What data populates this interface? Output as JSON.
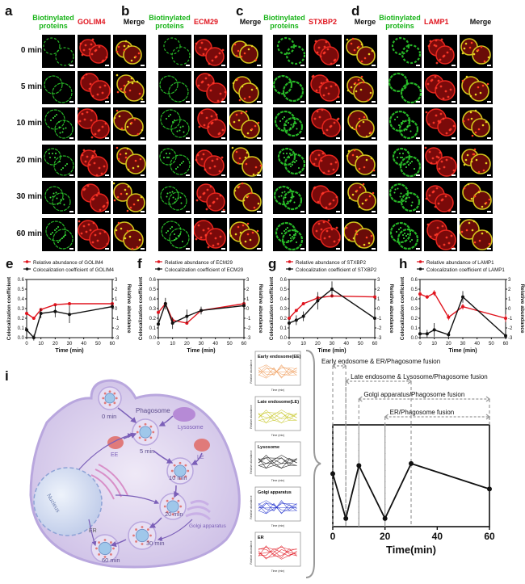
{
  "panel_letters": [
    "a",
    "b",
    "c",
    "d",
    "e",
    "f",
    "g",
    "h",
    "i"
  ],
  "grid": {
    "time_labels": [
      "0 min",
      "5 min",
      "10 min",
      "20 min",
      "30 min",
      "60 min"
    ],
    "merge_label": "Merge",
    "green_label_line1": "Biotinylated",
    "green_label_line2": "proteins",
    "panels": [
      {
        "letter": "a",
        "marker": "GOLIM4"
      },
      {
        "letter": "b",
        "marker": "ECM29"
      },
      {
        "letter": "c",
        "marker": "STXBP2"
      },
      {
        "letter": "d",
        "marker": "LAMP1"
      }
    ]
  },
  "chart_data": [
    {
      "type": "line",
      "panel": "e",
      "legend": [
        "Relative abundance of GOLIM4",
        "Colocalization coefficient of GOLIM4"
      ],
      "xlabel": "Time (min)",
      "ylabel_left": "Colocalization coefficient",
      "ylabel_right": "Relative abundance",
      "x": [
        0,
        5,
        10,
        20,
        30,
        60
      ],
      "xticks": [
        "0",
        "10",
        "20",
        "30",
        "40",
        "50",
        "60"
      ],
      "yticks_left": [
        "0.0",
        "0.1",
        "0.2",
        "0.3",
        "0.4",
        "0.5",
        "0.6"
      ],
      "yticks_right": [
        "3",
        "2",
        "1",
        "0",
        "-1",
        "-2",
        "-3"
      ],
      "xlim": [
        0,
        60
      ],
      "ylim_left": [
        0,
        0.6
      ],
      "ylim_right": [
        -3,
        3
      ],
      "series": [
        {
          "name": "Relative abundance of GOLIM4",
          "axis": "right",
          "color": "#e0141e",
          "values": [
            -0.5,
            -1.0,
            -0.1,
            0.4,
            0.5,
            0.5
          ]
        },
        {
          "name": "Colocalization coefficient of GOLIM4",
          "axis": "left",
          "color": "#111111",
          "values": [
            0.08,
            0.0,
            0.25,
            0.27,
            0.24,
            0.32
          ],
          "errors": [
            0.04,
            0.03,
            0.05,
            0.06,
            0.09,
            0.04
          ]
        }
      ]
    },
    {
      "type": "line",
      "panel": "f",
      "legend": [
        "Relative abundance of ECM29",
        "Colocalization coefficient of ECM29"
      ],
      "xlabel": "Time (min)",
      "ylabel_left": "Colocalization coefficient",
      "ylabel_right": "Relative abundance",
      "x": [
        0,
        5,
        10,
        20,
        30,
        60
      ],
      "xticks": [
        "0",
        "10",
        "20",
        "30",
        "40",
        "50",
        "60"
      ],
      "yticks_left": [
        "0.0",
        "0.1",
        "0.2",
        "0.3",
        "0.4",
        "0.5",
        "0.6"
      ],
      "yticks_right": [
        "3",
        "2",
        "1",
        "0",
        "-1",
        "-2",
        "-3"
      ],
      "xlim": [
        0,
        60
      ],
      "ylim_left": [
        0,
        0.6
      ],
      "ylim_right": [
        -3,
        3
      ],
      "series": [
        {
          "name": "Relative abundance of ECM29",
          "axis": "right",
          "color": "#e0141e",
          "values": [
            -0.4,
            0.5,
            -1.2,
            -1.5,
            -0.2,
            0.5
          ]
        },
        {
          "name": "Colocalization coefficient of ECM29",
          "axis": "left",
          "color": "#111111",
          "values": [
            0.14,
            0.35,
            0.15,
            0.22,
            0.28,
            0.33
          ],
          "errors": [
            0.05,
            0.06,
            0.06,
            0.07,
            0.04,
            0.06
          ]
        }
      ]
    },
    {
      "type": "line",
      "panel": "g",
      "legend": [
        "Relative abundance of STXBP2",
        "Colocalization coefficient of STXBP2"
      ],
      "xlabel": "Time (min)",
      "ylabel_left": "Colocalization coefficient",
      "ylabel_right": "Relative abundance",
      "x": [
        0,
        5,
        10,
        20,
        30,
        60
      ],
      "xticks": [
        "0",
        "10",
        "20",
        "30",
        "40",
        "50",
        "60"
      ],
      "yticks_left": [
        "0.0",
        "0.1",
        "0.2",
        "0.3",
        "0.4",
        "0.5",
        "0.6"
      ],
      "yticks_right": [
        "3",
        "2",
        "1",
        "0",
        "-1",
        "-2",
        "-3"
      ],
      "xlim": [
        0,
        60
      ],
      "ylim_left": [
        0,
        0.6
      ],
      "ylim_right": [
        -3,
        3
      ],
      "series": [
        {
          "name": "Relative abundance of STXBP2",
          "axis": "right",
          "color": "#e0141e",
          "values": [
            -1.0,
            -0.2,
            0.5,
            1.1,
            1.3,
            1.2
          ]
        },
        {
          "name": "Colocalization coefficient of STXBP2",
          "axis": "left",
          "color": "#111111",
          "values": [
            0.15,
            0.18,
            0.22,
            0.38,
            0.5,
            0.2
          ],
          "errors": [
            0.04,
            0.05,
            0.05,
            0.09,
            0.08,
            0.05
          ]
        }
      ]
    },
    {
      "type": "line",
      "panel": "h",
      "legend": [
        "Relative abundance of LAMP1",
        "Colocalization coefficient of LAMP1"
      ],
      "xlabel": "Time (min)",
      "ylabel_left": "Colocalization coefficient",
      "ylabel_right": "Relative abundance",
      "x": [
        0,
        5,
        10,
        20,
        30,
        60
      ],
      "xticks": [
        "0",
        "10",
        "20",
        "30",
        "40",
        "50",
        "60"
      ],
      "yticks_left": [
        "0.0",
        "0.1",
        "0.2",
        "0.3",
        "0.4",
        "0.5",
        "0.6"
      ],
      "yticks_right": [
        "3",
        "2",
        "1",
        "0",
        "-1",
        "-2",
        "-3"
      ],
      "xlim": [
        0,
        60
      ],
      "ylim_left": [
        0,
        0.6
      ],
      "ylim_right": [
        -3,
        3
      ],
      "series": [
        {
          "name": "Relative abundance of LAMP1",
          "axis": "right",
          "color": "#e0141e",
          "values": [
            1.5,
            1.2,
            1.6,
            -0.9,
            0.2,
            -1.0
          ],
          "errors": [
            0.3,
            0.2,
            0.3,
            0.3,
            0.3,
            0.4
          ]
        },
        {
          "name": "Colocalization coefficient of LAMP1",
          "axis": "left",
          "color": "#111111",
          "values": [
            0.04,
            0.04,
            0.08,
            0.03,
            0.42,
            0.02
          ],
          "errors": [
            0.03,
            0.04,
            0.07,
            0.03,
            0.06,
            0.02
          ]
        }
      ]
    },
    {
      "type": "line",
      "panel": "i",
      "xlabel": "Time(min)",
      "x": [
        0,
        5,
        10,
        20,
        30,
        60
      ],
      "xticks": [
        "0",
        "20",
        "40",
        "60"
      ],
      "xlim": [
        0,
        60
      ],
      "series": [
        {
          "color": "#111111",
          "values": [
            0.52,
            0.08,
            0.6,
            0.08,
            0.62,
            0.37
          ]
        }
      ],
      "stages": [
        {
          "label": "Early endosome & ER/Phagosome fusion",
          "start": 0,
          "end": 5
        },
        {
          "label": "Late endosome & Lysosome/Phagosome fusion",
          "start": 5,
          "end": 30
        },
        {
          "label": "Golgi apparatus/Phagosome fusion",
          "start": 10,
          "end": 60
        },
        {
          "label": "ER/Phagosome fusion",
          "start": 20,
          "end": 60
        }
      ]
    }
  ],
  "mini_charts": [
    {
      "title": "Early endosome(EE)",
      "color": "#f0a060",
      "xlabel": "Time (min)",
      "ylabel": "Relative abundance"
    },
    {
      "title": "Late endosome(LE)",
      "color": "#c8c82a",
      "xlabel": "Time (min)",
      "ylabel": "Relative abundance"
    },
    {
      "title": "Lysosome",
      "color": "#111111",
      "xlabel": "Time (min)",
      "ylabel": "Relative abundance"
    },
    {
      "title": "Golgi apparatus",
      "color": "#2233cc",
      "xlabel": "Time (min)",
      "ylabel": "Relative abundance"
    },
    {
      "title": "ER",
      "color": "#e0141e",
      "xlabel": "Time (min)",
      "ylabel": "Relative abundance"
    }
  ],
  "diagram": {
    "phagosome": "Phagosome",
    "lysosome": "Lysosome",
    "ee": "EE",
    "le": "LE",
    "er": "ER",
    "nucleus": "Nucleus",
    "golgi": "Golgi apparatus",
    "t0": "0 min",
    "t5": "5 min",
    "t10": "10 min",
    "t20": "20 min",
    "t30": "30 min",
    "t60": "60 min"
  }
}
